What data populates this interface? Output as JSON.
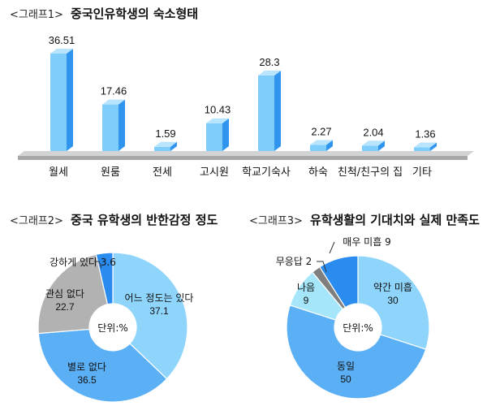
{
  "colors": {
    "bar_front": "#7fcdfb",
    "bar_side": "#2f95ee",
    "bar_top": "#b9e4fd",
    "floor_top": "#d3d3d3",
    "floor_front": "#a8a8a8",
    "pie_light": "#8ed4fb",
    "pie_mid": "#5aaff5",
    "pie_dark": "#2b8cf0",
    "pie_grey": "#b2b2b2",
    "pie_darkgrey": "#7f7f7f"
  },
  "chart_data": [
    {
      "type": "bar",
      "title_prefix": "<그래프1>",
      "title": "중국인유학생의 숙소형태",
      "categories": [
        "월세",
        "원룸",
        "전세",
        "고시원",
        "학교기숙사",
        "하숙",
        "친척/친구의 집",
        "기타"
      ],
      "values": [
        36.51,
        17.46,
        1.59,
        10.43,
        28.3,
        2.27,
        2.04,
        1.36
      ],
      "value_labels": [
        "36.51",
        "17.46",
        "1.59",
        "10.43",
        "28.3",
        "2.27",
        "2.04",
        "1.36"
      ],
      "ylim": [
        0,
        40
      ],
      "xlabel": "",
      "ylabel": "",
      "grid": false,
      "style": "3d"
    },
    {
      "type": "pie",
      "style": "donut",
      "title_prefix": "<그래프2>",
      "title": "중국 유학생의 반한감정 정도",
      "center_label": "단위:%",
      "slices": [
        {
          "label": "어느 정도는 있다",
          "value": 37.1,
          "value_label": "37.1",
          "color": "#8ed4fb"
        },
        {
          "label": "별로 없다",
          "value": 36.5,
          "value_label": "36.5",
          "color": "#5aaff5"
        },
        {
          "label": "관심 없다",
          "value": 22.7,
          "value_label": "22.7",
          "color": "#b2b2b2"
        },
        {
          "label": "강하게 있다",
          "value": 3.6,
          "value_label": "3.6",
          "color": "#2b8cf0"
        }
      ]
    },
    {
      "type": "pie",
      "style": "donut",
      "title_prefix": "<그래프3>",
      "title": "유학생활의 기대치와 실제 만족도",
      "center_label": "단위:%",
      "slices": [
        {
          "label": "약간 미흡",
          "value": 30,
          "value_label": "30",
          "color": "#8ed4fb"
        },
        {
          "label": "동일",
          "value": 50,
          "value_label": "50",
          "color": "#5aaff5"
        },
        {
          "label": "나음",
          "value": 9,
          "value_label": "9",
          "color": "#a6e6fb"
        },
        {
          "label": "무응답",
          "value": 2,
          "value_label": "2",
          "color": "#7f7f7f"
        },
        {
          "label": "매우 미흡",
          "value": 9,
          "value_label": "9",
          "color": "#2b8cf0"
        }
      ]
    }
  ]
}
